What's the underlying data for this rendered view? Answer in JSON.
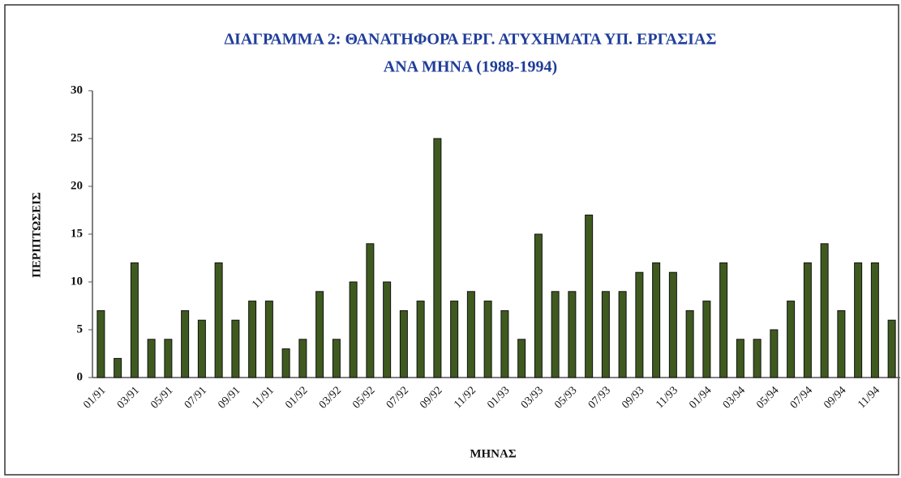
{
  "chart_data": {
    "type": "bar",
    "title": [
      "ΔΙΑΓΡΑΜΜΑ 2: ΘΑΝΑΤΗΦΟΡΑ ΕΡΓ. ΑΤΥΧΗΜΑΤΑ ΥΠ. ΕΡΓΑΣΙΑΣ",
      "ΑΝΑ ΜΗΝΑ (1988-1994)"
    ],
    "x_label": "ΜΗΝΑΣ",
    "y_label": "ΠΕΡΙΠΤΩΣΕΙΣ",
    "categories": [
      "01/91",
      null,
      "03/91",
      null,
      "05/91",
      null,
      "07/91",
      null,
      "09/91",
      null,
      "11/91",
      null,
      "01/92",
      null,
      "03/92",
      null,
      "05/92",
      null,
      "07/92",
      null,
      "09/92",
      null,
      "11/92",
      null,
      "01/93",
      null,
      "03/93",
      null,
      "05/93",
      null,
      "07/93",
      null,
      "09/93",
      null,
      "11/93",
      null,
      "01/94",
      null,
      "03/94",
      null,
      "05/94",
      null,
      "07/94",
      null,
      "09/94",
      null,
      "11/94",
      null
    ],
    "values": [
      7,
      2,
      12,
      4,
      4,
      7,
      6,
      12,
      6,
      8,
      8,
      3,
      4,
      9,
      4,
      10,
      14,
      10,
      7,
      8,
      25,
      8,
      9,
      8,
      7,
      4,
      15,
      9,
      9,
      17,
      9,
      9,
      11,
      12,
      11,
      7,
      8,
      12,
      4,
      4,
      5,
      8,
      12,
      14,
      7,
      12,
      12,
      6
    ],
    "color": "#3f5a1f",
    "ylim": [
      0,
      30
    ],
    "yticks": [
      0,
      5,
      10,
      15,
      20,
      25,
      30
    ],
    "grid": false
  }
}
